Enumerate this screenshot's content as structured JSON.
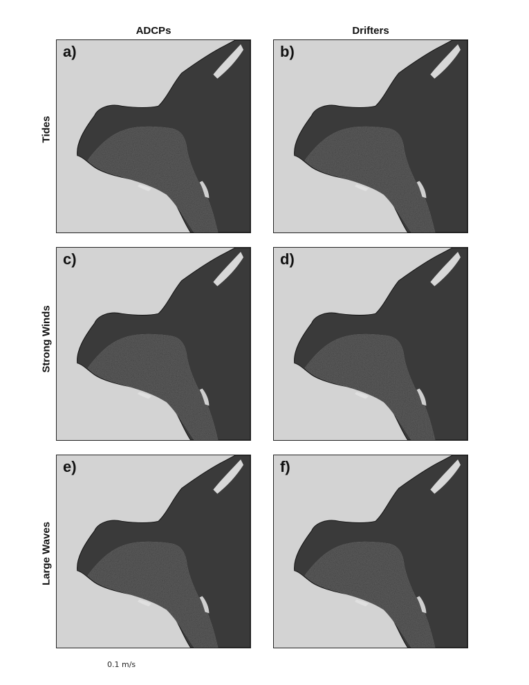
{
  "columns": [
    "ADCPs",
    "Drifters"
  ],
  "rows": [
    "Tides",
    "Strong Winds",
    "Large Waves"
  ],
  "panels": [
    {
      "label": "a)"
    },
    {
      "label": "b)"
    },
    {
      "label": "c)"
    },
    {
      "label": "d)"
    },
    {
      "label": "e)"
    },
    {
      "label": "f)"
    }
  ],
  "scale_label": "0.1 m/s",
  "colors": {
    "water": "#d3d3d3",
    "land_dark": "#3a3a3a",
    "land_mid": "#5e5e5e",
    "surf": "#eaeaea",
    "frame": "#222222"
  }
}
